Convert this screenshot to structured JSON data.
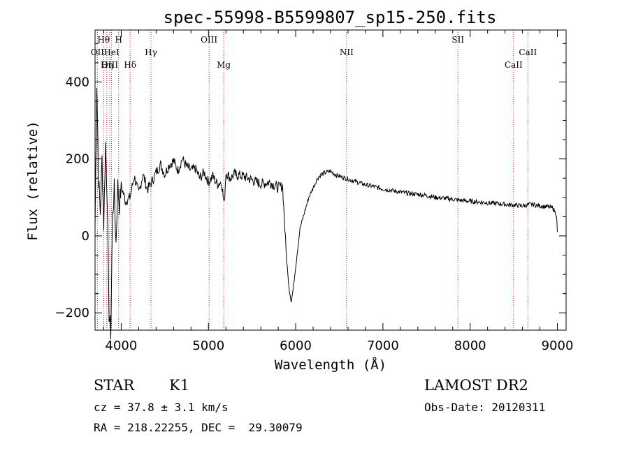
{
  "chart_data": {
    "type": "line",
    "title": "spec-55998-B5599807_sp15-250.fits",
    "xlabel": "Wavelength (Å)",
    "ylabel": "Flux (relative)",
    "xlim": [
      3700,
      9100
    ],
    "ylim": [
      -245,
      535
    ],
    "xticks": [
      4000,
      5000,
      6000,
      7000,
      8000,
      9000
    ],
    "yticks": [
      -200,
      0,
      200,
      400
    ],
    "grid": false,
    "series": [
      {
        "color": "#000000",
        "x": [
          3700,
          3720,
          3740,
          3760,
          3780,
          3800,
          3820,
          3840,
          3860,
          3880,
          3900,
          3920,
          3940,
          3960,
          3980,
          4000,
          4050,
          4100,
          4150,
          4200,
          4250,
          4300,
          4350,
          4400,
          4450,
          4500,
          4550,
          4600,
          4650,
          4700,
          4750,
          4800,
          4850,
          4900,
          4950,
          5000,
          5050,
          5100,
          5150,
          5180,
          5200,
          5250,
          5300,
          5400,
          5500,
          5600,
          5700,
          5800,
          5850,
          5870,
          5890,
          5910,
          5930,
          5950,
          5970,
          5990,
          6010,
          6050,
          6100,
          6150,
          6200,
          6250,
          6300,
          6350,
          6400,
          6450,
          6500,
          6600,
          6700,
          6800,
          6900,
          7000,
          7100,
          7200,
          7300,
          7400,
          7500,
          7600,
          7700,
          7800,
          7900,
          8000,
          8100,
          8200,
          8300,
          8400,
          8500,
          8600,
          8700,
          8800,
          8900,
          8950,
          8990,
          9000
        ],
        "y": [
          20,
          400,
          150,
          60,
          200,
          30,
          240,
          100,
          -200,
          -250,
          50,
          120,
          -20,
          130,
          80,
          130,
          90,
          100,
          155,
          110,
          160,
          120,
          140,
          165,
          185,
          160,
          185,
          195,
          170,
          200,
          180,
          170,
          175,
          150,
          165,
          140,
          155,
          135,
          140,
          80,
          165,
          150,
          160,
          155,
          145,
          135,
          140,
          125,
          130,
          45,
          -40,
          -100,
          -145,
          -170,
          -140,
          -100,
          -60,
          20,
          60,
          100,
          125,
          150,
          160,
          165,
          168,
          160,
          155,
          148,
          140,
          133,
          128,
          122,
          118,
          114,
          110,
          108,
          105,
          100,
          98,
          95,
          92,
          90,
          88,
          86,
          84,
          82,
          80,
          78,
          82,
          78,
          75,
          72,
          55,
          10
        ]
      }
    ]
  },
  "spectral_lines": [
    {
      "label": "Hθ",
      "wavelength": 3798,
      "row": 1
    },
    {
      "label": "H",
      "wavelength": 3970,
      "row": 1
    },
    {
      "label": "OII",
      "wavelength": 3727,
      "row": 2
    },
    {
      "label": "HeI",
      "wavelength": 3889,
      "row": 2
    },
    {
      "label": "Hγ",
      "wavelength": 4341,
      "row": 2
    },
    {
      "label": "OIII",
      "wavelength": 3869,
      "row": 3
    },
    {
      "label": "Hη",
      "wavelength": 3835,
      "row": 3
    },
    {
      "label": "Hδ",
      "wavelength": 4102,
      "row": 3
    },
    {
      "label": "OIII",
      "wavelength": 5007,
      "row": 1
    },
    {
      "label": "Mg",
      "wavelength": 5175,
      "row": 3
    },
    {
      "label": "NII",
      "wavelength": 6583,
      "row": 2
    },
    {
      "label": "SII",
      "wavelength": 7860,
      "row": 1
    },
    {
      "label": "CaII",
      "wavelength": 8662,
      "row": 2
    },
    {
      "label": "CaII",
      "wavelength": 8498,
      "row": 3
    }
  ],
  "info": {
    "class": "STAR",
    "subclass": "K1",
    "survey": "LAMOST DR2",
    "cz": "cz = 37.8 ± 3.1 km/s",
    "obs_date": "Obs-Date: 20120311",
    "coords": "RA = 218.22255, DEC =  29.30079"
  }
}
